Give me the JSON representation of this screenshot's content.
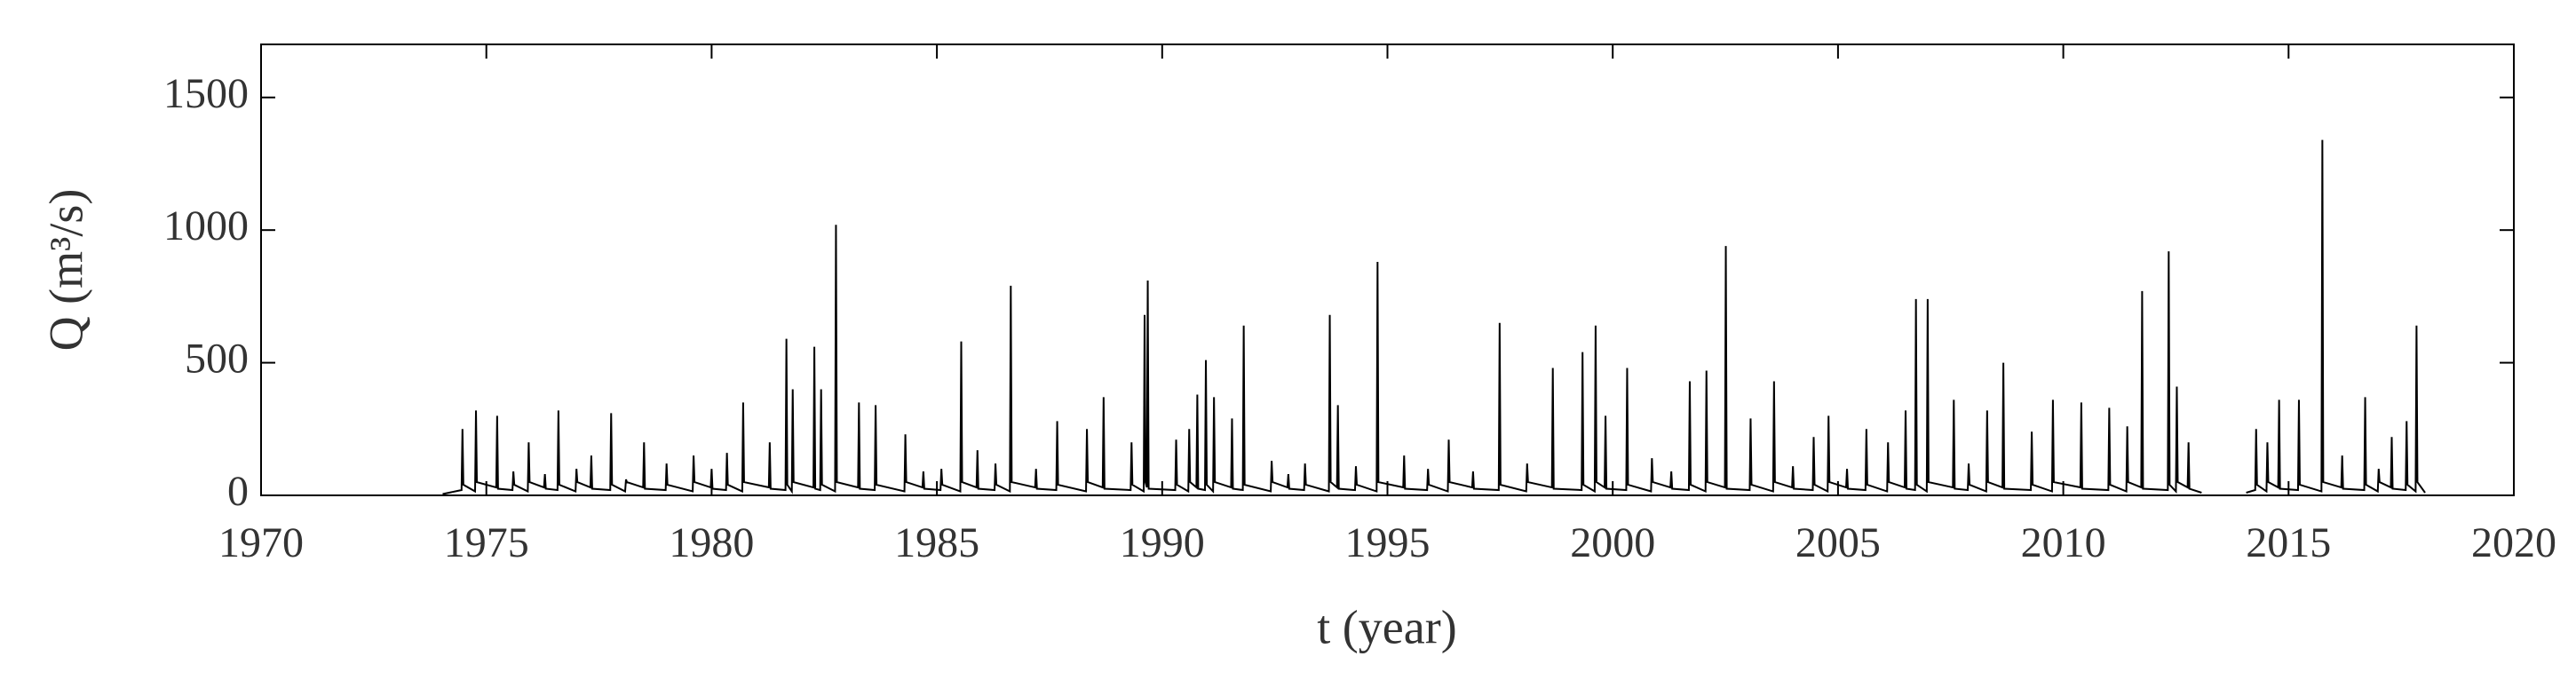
{
  "chart_data": {
    "type": "line",
    "xlabel": "t (year)",
    "ylabel": "Q (m³/s)",
    "xlim": [
      1970,
      2020
    ],
    "xticks": [
      1970,
      1975,
      1980,
      1985,
      1990,
      1995,
      2000,
      2005,
      2010,
      2015,
      2020
    ],
    "ylim": [
      0,
      1700
    ],
    "yticks": [
      0,
      500,
      1000,
      1500
    ],
    "grid": false,
    "x": [
      1974.03,
      1974.45,
      1974.47,
      1974.49,
      1974.75,
      1974.77,
      1974.79,
      1975.22,
      1975.24,
      1975.26,
      1975.58,
      1975.6,
      1975.62,
      1975.92,
      1975.94,
      1975.96,
      1976.28,
      1976.3,
      1976.32,
      1976.58,
      1976.6,
      1976.62,
      1976.98,
      1977.0,
      1977.02,
      1977.31,
      1977.33,
      1977.35,
      1977.75,
      1977.77,
      1977.79,
      1978.08,
      1978.1,
      1978.12,
      1978.48,
      1978.5,
      1978.52,
      1978.98,
      1979.0,
      1979.02,
      1979.58,
      1979.6,
      1979.62,
      1979.98,
      1980.0,
      1980.02,
      1980.32,
      1980.34,
      1980.36,
      1980.68,
      1980.7,
      1980.72,
      1981.27,
      1981.29,
      1981.31,
      1981.64,
      1981.66,
      1981.68,
      1981.78,
      1981.8,
      1981.82,
      1982.26,
      1982.28,
      1982.3,
      1982.41,
      1982.43,
      1982.45,
      1982.74,
      1982.76,
      1982.78,
      1983.25,
      1983.27,
      1983.29,
      1983.62,
      1983.64,
      1983.66,
      1984.28,
      1984.3,
      1984.32,
      1984.68,
      1984.7,
      1984.72,
      1985.08,
      1985.1,
      1985.12,
      1985.52,
      1985.54,
      1985.56,
      1985.88,
      1985.9,
      1985.92,
      1986.28,
      1986.3,
      1986.32,
      1986.62,
      1986.64,
      1986.66,
      1987.18,
      1987.2,
      1987.22,
      1987.65,
      1987.67,
      1987.69,
      1988.31,
      1988.33,
      1988.35,
      1988.68,
      1988.7,
      1988.72,
      1989.3,
      1989.32,
      1989.34,
      1989.59,
      1989.61,
      1989.63,
      1989.66,
      1989.68,
      1989.7,
      1990.29,
      1990.31,
      1990.33,
      1990.58,
      1990.6,
      1990.62,
      1990.76,
      1990.78,
      1990.8,
      1990.95,
      1990.97,
      1990.99,
      1991.13,
      1991.15,
      1991.17,
      1991.53,
      1991.55,
      1991.57,
      1991.79,
      1991.81,
      1991.83,
      1992.41,
      1992.43,
      1992.45,
      1992.78,
      1992.8,
      1992.82,
      1993.15,
      1993.17,
      1993.19,
      1993.7,
      1993.72,
      1993.74,
      1993.88,
      1993.9,
      1993.92,
      1994.28,
      1994.3,
      1994.32,
      1994.76,
      1994.78,
      1994.8,
      1995.35,
      1995.37,
      1995.39,
      1995.88,
      1995.9,
      1995.92,
      1996.34,
      1996.36,
      1996.38,
      1996.88,
      1996.9,
      1996.92,
      1997.47,
      1997.49,
      1997.51,
      1998.08,
      1998.1,
      1998.12,
      1998.65,
      1998.67,
      1998.69,
      1999.31,
      1999.33,
      1999.35,
      1999.6,
      1999.62,
      1999.64,
      1999.82,
      1999.84,
      1999.86,
      2000.3,
      2000.32,
      2000.34,
      2000.85,
      2000.87,
      2000.89,
      2001.28,
      2001.3,
      2001.32,
      2001.69,
      2001.71,
      2001.73,
      2002.06,
      2002.08,
      2002.1,
      2002.49,
      2002.51,
      2002.53,
      2003.04,
      2003.06,
      2003.08,
      2003.56,
      2003.58,
      2003.6,
      2003.98,
      2004.0,
      2004.02,
      2004.44,
      2004.46,
      2004.48,
      2004.77,
      2004.79,
      2004.81,
      2005.18,
      2005.2,
      2005.22,
      2005.61,
      2005.63,
      2005.65,
      2006.09,
      2006.11,
      2006.13,
      2006.48,
      2006.5,
      2006.52,
      2006.71,
      2006.73,
      2006.75,
      2006.97,
      2006.99,
      2007.01,
      2007.55,
      2007.57,
      2007.59,
      2007.88,
      2007.9,
      2007.92,
      2008.29,
      2008.31,
      2008.33,
      2008.65,
      2008.67,
      2008.69,
      2009.28,
      2009.3,
      2009.32,
      2009.75,
      2009.77,
      2009.79,
      2010.38,
      2010.4,
      2010.42,
      2011.0,
      2011.02,
      2011.04,
      2011.4,
      2011.42,
      2011.44,
      2011.73,
      2011.75,
      2011.77,
      2012.32,
      2012.34,
      2012.36,
      2012.5,
      2012.52,
      2012.54,
      2012.76,
      2012.78,
      2012.8,
      2013.07,
      2013.5,
      2014.06,
      2014.26,
      2014.28,
      2014.3,
      2014.51,
      2014.53,
      2014.55,
      2014.77,
      2014.79,
      2014.81,
      2015.21,
      2015.23,
      2015.25,
      2015.73,
      2015.75,
      2015.77,
      2016.17,
      2016.19,
      2016.21,
      2016.68,
      2016.7,
      2016.72,
      2016.98,
      2017.0,
      2017.02,
      2017.27,
      2017.29,
      2017.31,
      2017.6,
      2017.62,
      2017.64,
      2017.82,
      2017.84,
      2017.86,
      2018.03
    ],
    "series": [
      {
        "color": "#000000",
        "values": [
          5,
          20,
          250,
          40,
          15,
          320,
          50,
          30,
          300,
          25,
          20,
          90,
          40,
          15,
          200,
          50,
          30,
          80,
          25,
          20,
          320,
          40,
          15,
          100,
          50,
          30,
          150,
          25,
          20,
          310,
          40,
          15,
          60,
          50,
          30,
          200,
          25,
          20,
          120,
          40,
          15,
          150,
          50,
          30,
          100,
          25,
          20,
          160,
          40,
          15,
          350,
          50,
          30,
          200,
          25,
          20,
          590,
          40,
          15,
          400,
          50,
          30,
          560,
          25,
          20,
          400,
          40,
          15,
          1020,
          50,
          30,
          350,
          25,
          20,
          340,
          40,
          15,
          230,
          50,
          30,
          90,
          25,
          20,
          100,
          40,
          15,
          580,
          50,
          30,
          170,
          25,
          20,
          120,
          40,
          15,
          790,
          50,
          30,
          100,
          25,
          20,
          280,
          40,
          15,
          250,
          50,
          30,
          370,
          25,
          20,
          200,
          40,
          15,
          680,
          50,
          30,
          810,
          25,
          20,
          210,
          40,
          15,
          250,
          50,
          30,
          380,
          25,
          20,
          510,
          40,
          15,
          370,
          50,
          30,
          290,
          25,
          20,
          640,
          40,
          15,
          130,
          50,
          30,
          80,
          25,
          20,
          120,
          40,
          15,
          680,
          50,
          30,
          340,
          25,
          20,
          110,
          40,
          15,
          880,
          50,
          30,
          150,
          25,
          20,
          100,
          40,
          15,
          210,
          50,
          30,
          90,
          25,
          20,
          650,
          40,
          15,
          120,
          50,
          30,
          480,
          25,
          20,
          540,
          40,
          15,
          640,
          50,
          30,
          300,
          25,
          20,
          480,
          40,
          15,
          140,
          50,
          30,
          90,
          25,
          20,
          430,
          40,
          15,
          470,
          50,
          30,
          940,
          25,
          20,
          290,
          40,
          15,
          430,
          50,
          30,
          110,
          25,
          20,
          220,
          40,
          15,
          300,
          50,
          30,
          100,
          25,
          20,
          250,
          40,
          15,
          200,
          50,
          30,
          320,
          25,
          20,
          740,
          40,
          15,
          740,
          50,
          30,
          360,
          25,
          20,
          120,
          40,
          15,
          320,
          50,
          30,
          500,
          25,
          20,
          240,
          40,
          15,
          360,
          50,
          30,
          350,
          25,
          20,
          330,
          40,
          15,
          260,
          50,
          30,
          770,
          25,
          20,
          920,
          40,
          15,
          410,
          50,
          30,
          200,
          25,
          10,
          null,
          10,
          20,
          250,
          40,
          15,
          200,
          50,
          30,
          360,
          25,
          20,
          360,
          40,
          15,
          1340,
          50,
          30,
          150,
          25,
          20,
          370,
          40,
          15,
          100,
          50,
          30,
          220,
          25,
          20,
          280,
          40,
          15,
          640,
          50,
          10
        ]
      }
    ]
  }
}
